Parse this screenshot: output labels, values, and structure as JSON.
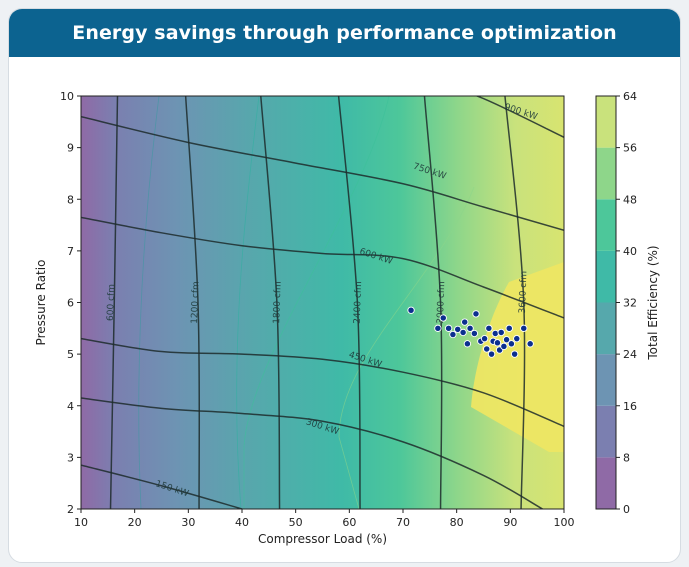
{
  "header": {
    "title": "Energy savings through performance optimization"
  },
  "chart_data": {
    "type": "contour",
    "xlabel": "Compressor Load (%)",
    "ylabel": "Pressure Ratio",
    "xlim": [
      10,
      100
    ],
    "ylim": [
      2,
      10
    ],
    "x_ticks": [
      "10",
      "20",
      "30",
      "40",
      "50",
      "60",
      "70",
      "80",
      "90",
      "100"
    ],
    "y_ticks": [
      "2",
      "3",
      "4",
      "5",
      "6",
      "7",
      "8",
      "9",
      "10"
    ],
    "colorbar": {
      "label": "Total Efficiency (%)",
      "ticks": [
        "0",
        "8",
        "16",
        "24",
        "32",
        "40",
        "48",
        "56",
        "64"
      ],
      "levels": [
        0,
        8,
        16,
        24,
        32,
        40,
        48,
        56,
        64
      ],
      "colors": [
        "#8f6aa6",
        "#7b7fb0",
        "#6d94b3",
        "#56a8ac",
        "#3fbaa7",
        "#4dc79a",
        "#8ed68a",
        "#c9e27c",
        "#ede663"
      ]
    },
    "power_contours": [
      {
        "label": "150 kW",
        "points": [
          [
            10,
            2.85
          ],
          [
            25,
            2.45
          ],
          [
            40,
            2.0
          ]
        ]
      },
      {
        "label": "300 kW",
        "points": [
          [
            10,
            4.15
          ],
          [
            25,
            3.95
          ],
          [
            40,
            3.85
          ],
          [
            55,
            3.7
          ],
          [
            70,
            3.3
          ],
          [
            85,
            2.65
          ],
          [
            96,
            2.0
          ]
        ]
      },
      {
        "label": "450 kW",
        "points": [
          [
            10,
            5.3
          ],
          [
            25,
            5.05
          ],
          [
            40,
            5.0
          ],
          [
            55,
            4.9
          ],
          [
            70,
            4.65
          ],
          [
            85,
            4.25
          ],
          [
            100,
            3.6
          ]
        ]
      },
      {
        "label": "600 kW",
        "points": [
          [
            10,
            7.65
          ],
          [
            25,
            7.35
          ],
          [
            40,
            7.1
          ],
          [
            55,
            6.95
          ],
          [
            70,
            6.85
          ],
          [
            85,
            6.3
          ],
          [
            100,
            5.7
          ]
        ]
      },
      {
        "label": "750 kW",
        "points": [
          [
            10,
            9.6
          ],
          [
            30,
            9.1
          ],
          [
            50,
            8.7
          ],
          [
            70,
            8.3
          ],
          [
            85,
            7.85
          ],
          [
            100,
            7.4
          ]
        ]
      },
      {
        "label": "900 kW",
        "points": [
          [
            75,
            10.3
          ],
          [
            85,
            9.95
          ],
          [
            100,
            9.2
          ]
        ]
      }
    ],
    "flow_contours": [
      {
        "label": "600 cfm",
        "points": [
          [
            15.5,
            2.0
          ],
          [
            16.2,
            6.0
          ],
          [
            16.8,
            10.0
          ]
        ]
      },
      {
        "label": "1200 cfm",
        "points": [
          [
            32,
            2.0
          ],
          [
            31.8,
            6.0
          ],
          [
            29.5,
            10.0
          ]
        ]
      },
      {
        "label": "1800 cfm",
        "points": [
          [
            47,
            2.0
          ],
          [
            46.5,
            6.0
          ],
          [
            43.5,
            10.0
          ]
        ]
      },
      {
        "label": "2400 cfm",
        "points": [
          [
            62,
            2.0
          ],
          [
            61.5,
            6.0
          ],
          [
            58,
            10.0
          ]
        ]
      },
      {
        "label": "3000 cfm",
        "points": [
          [
            77,
            2.0
          ],
          [
            77,
            6.0
          ],
          [
            74,
            10.0
          ]
        ]
      },
      {
        "label": "3600 cfm",
        "points": [
          [
            92,
            2.0
          ],
          [
            92.5,
            6.0
          ],
          [
            89,
            10.0
          ]
        ]
      }
    ],
    "scatter": {
      "color": "#0b2f8f",
      "points": [
        [
          71.5,
          5.85
        ],
        [
          76.5,
          5.5
        ],
        [
          77.5,
          5.7
        ],
        [
          78.5,
          5.5
        ],
        [
          79.3,
          5.38
        ],
        [
          80.2,
          5.48
        ],
        [
          81.2,
          5.42
        ],
        [
          81.5,
          5.62
        ],
        [
          82,
          5.2
        ],
        [
          82.5,
          5.5
        ],
        [
          83.3,
          5.4
        ],
        [
          83.6,
          5.78
        ],
        [
          84.5,
          5.25
        ],
        [
          85.2,
          5.3
        ],
        [
          85.6,
          5.1
        ],
        [
          86,
          5.5
        ],
        [
          86.5,
          5.0
        ],
        [
          86.8,
          5.25
        ],
        [
          87.2,
          5.4
        ],
        [
          87.6,
          5.22
        ],
        [
          88,
          5.08
        ],
        [
          88.3,
          5.42
        ],
        [
          88.8,
          5.15
        ],
        [
          89.3,
          5.28
        ],
        [
          89.8,
          5.5
        ],
        [
          90.2,
          5.2
        ],
        [
          90.8,
          5.0
        ],
        [
          91.2,
          5.3
        ],
        [
          92.5,
          5.5
        ],
        [
          93.7,
          5.2
        ]
      ]
    }
  }
}
